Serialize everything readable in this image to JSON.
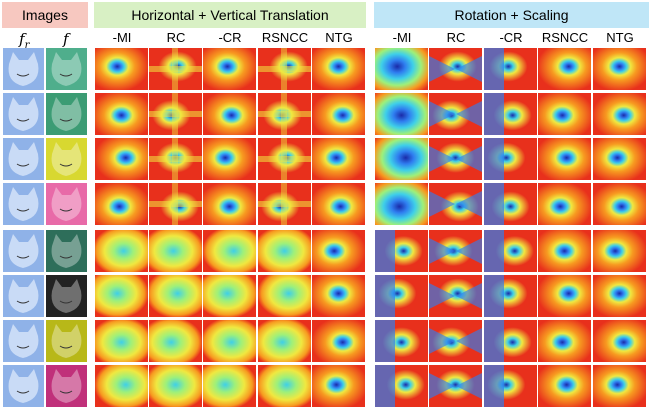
{
  "headers": {
    "images": "Images",
    "translation": "Horizontal + Vertical Translation",
    "rotation": "Rotation + Scaling"
  },
  "image_symbols": {
    "reference_base": "f",
    "reference_sub": "r",
    "moving": "f"
  },
  "translation_columns": [
    "-MI",
    "RC",
    "-CR",
    "RSNCC",
    "NTG"
  ],
  "rotation_columns": [
    "-MI",
    "RC",
    "-CR",
    "RSNCC",
    "NTG"
  ],
  "colors": {
    "images_header_bg": "#f7c8c0",
    "translation_header_bg": "#d8f0c4",
    "rotation_header_bg": "#bfe6f7",
    "colormap": [
      "#1a2aa8",
      "#2f7ef0",
      "#3fd0e8",
      "#9ef07a",
      "#f0e840",
      "#f79a20",
      "#e8301c"
    ]
  },
  "moving_image_tints": [
    "#4fae8c",
    "#3c9c74",
    "#d8d830",
    "#e86aa8",
    "#2e6e5a",
    "#222222",
    "#b8b818",
    "#c0307a"
  ]
}
